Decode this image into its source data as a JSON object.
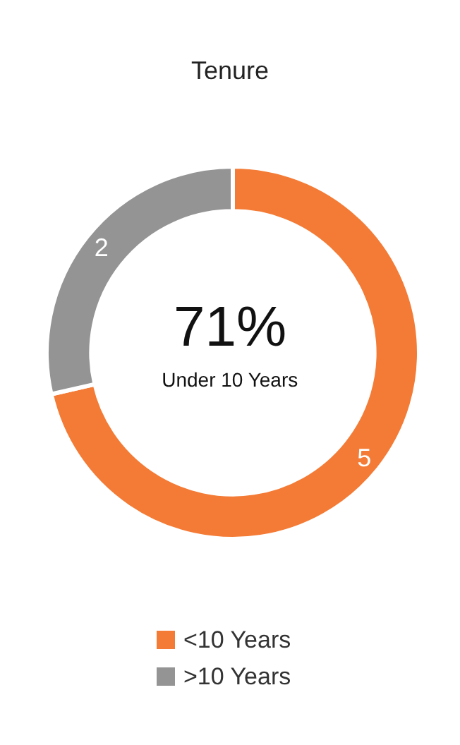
{
  "chart_data": {
    "type": "donut",
    "title": "Tenure",
    "categories": [
      "<10 Years",
      ">10 Years"
    ],
    "values": [
      5,
      2
    ],
    "colors": [
      "#f47b35",
      "#949494"
    ],
    "data_labels": true,
    "annotations": [
      "71%",
      "Under 10 Years"
    ],
    "legend": "bottom"
  }
}
